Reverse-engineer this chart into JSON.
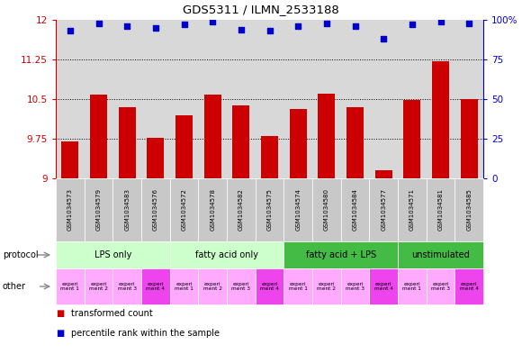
{
  "title": "GDS5311 / ILMN_2533188",
  "samples": [
    "GSM1034573",
    "GSM1034579",
    "GSM1034583",
    "GSM1034576",
    "GSM1034572",
    "GSM1034578",
    "GSM1034582",
    "GSM1034575",
    "GSM1034574",
    "GSM1034580",
    "GSM1034584",
    "GSM1034577",
    "GSM1034571",
    "GSM1034581",
    "GSM1034585"
  ],
  "bar_values": [
    9.7,
    10.58,
    10.35,
    9.77,
    10.2,
    10.58,
    10.38,
    9.8,
    10.32,
    10.6,
    10.35,
    9.15,
    10.48,
    11.22,
    10.5
  ],
  "dot_values": [
    93,
    98,
    96,
    95,
    97,
    99,
    94,
    93,
    96,
    98,
    96,
    88,
    97,
    99,
    98
  ],
  "bar_color": "#cc0000",
  "dot_color": "#0000cc",
  "ylim_left": [
    9.0,
    12.0
  ],
  "ylim_right": [
    0,
    100
  ],
  "yticks_left": [
    9.0,
    9.75,
    10.5,
    11.25,
    12.0
  ],
  "ytick_labels_left": [
    "9",
    "9.75",
    "10.5",
    "11.25",
    "12"
  ],
  "yticks_right": [
    0,
    25,
    50,
    75,
    100
  ],
  "ytick_labels_right": [
    "0",
    "25",
    "50",
    "75",
    "100%"
  ],
  "hlines": [
    9.75,
    10.5,
    11.25
  ],
  "protocol_colors": [
    "#ccffcc",
    "#ccffcc",
    "#44bb44",
    "#44bb44"
  ],
  "protocol_labels": [
    "LPS only",
    "fatty acid only",
    "fatty acid + LPS",
    "unstimulated"
  ],
  "protocol_starts": [
    0,
    4,
    8,
    12
  ],
  "protocol_counts": [
    4,
    4,
    4,
    3
  ],
  "other_labels": [
    "experi\nment 1",
    "experi\nment 2",
    "experi\nment 3",
    "experi\nment 4",
    "experi\nment 1",
    "experi\nment 2",
    "experi\nment 3",
    "experi\nment 4",
    "experi\nment 1",
    "experi\nment 2",
    "experi\nment 3",
    "experi\nment 4",
    "experi\nment 1",
    "experi\nment 3",
    "experi\nment 4"
  ],
  "other_colors": [
    "#ffaaff",
    "#ffaaff",
    "#ffaaff",
    "#ee44ee",
    "#ffaaff",
    "#ffaaff",
    "#ffaaff",
    "#ee44ee",
    "#ffaaff",
    "#ffaaff",
    "#ffaaff",
    "#ee44ee",
    "#ffaaff",
    "#ffaaff",
    "#ee44ee"
  ],
  "bg_color": "#ffffff",
  "bar_area_bg": "#d8d8d8",
  "xtick_bg": "#c8c8c8"
}
